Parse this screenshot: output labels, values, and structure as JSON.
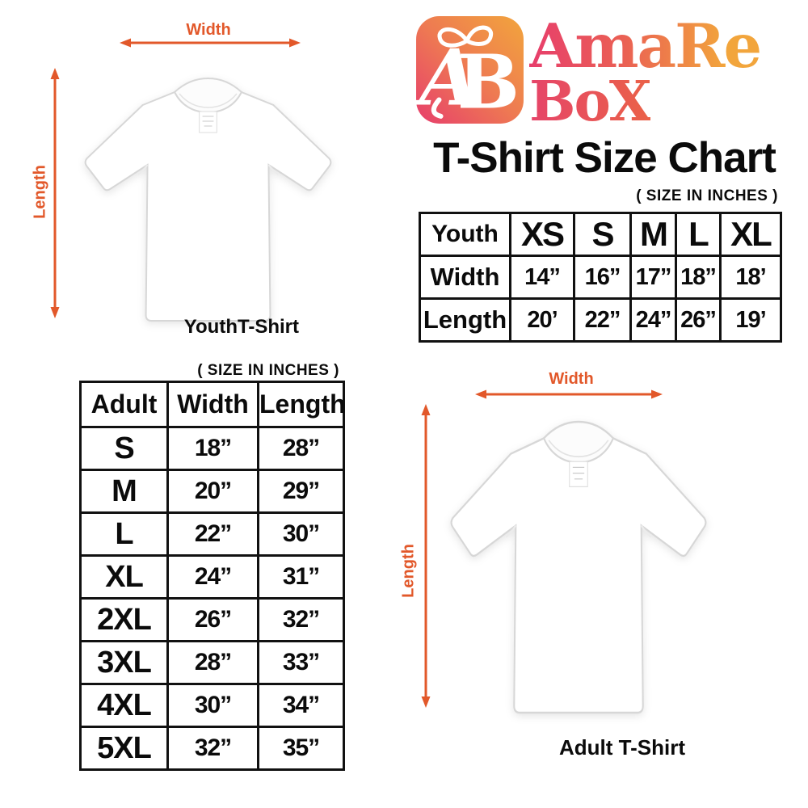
{
  "brand": {
    "wordmark_line1": "AmaRe",
    "wordmark_line2": "BoX",
    "icon": "gift-box-ab-monogram"
  },
  "title": "T-Shirt Size Chart",
  "size_note": "( SIZE IN INCHES )",
  "colors": {
    "accent_orange": "#E2582A",
    "logo_pink": "#E73E6C",
    "logo_coral": "#EE7A52",
    "logo_orange": "#F2A53C",
    "table_border": "#111111"
  },
  "youth_figure": {
    "width_label": "Width",
    "length_label": "Length",
    "caption": "YouthT-Shirt"
  },
  "adult_figure": {
    "width_label": "Width",
    "length_label": "Length",
    "caption": "Adult T-Shirt"
  },
  "youth_table": {
    "header": [
      "Youth",
      "XS",
      "S",
      "M",
      "L",
      "XL"
    ],
    "rows": [
      [
        "Width",
        "14”",
        "16”",
        "17”",
        "18”",
        "18’"
      ],
      [
        "Length",
        "20’",
        "22”",
        "24”",
        "26”",
        "19’"
      ]
    ]
  },
  "adult_table": {
    "header": [
      "Adult",
      "Width",
      "Length"
    ],
    "rows": [
      [
        "S",
        "18”",
        "28”"
      ],
      [
        "M",
        "20”",
        "29”"
      ],
      [
        "L",
        "22”",
        "30”"
      ],
      [
        "XL",
        "24”",
        "31”"
      ],
      [
        "2XL",
        "26”",
        "32”"
      ],
      [
        "3XL",
        "28”",
        "33”"
      ],
      [
        "4XL",
        "30”",
        "34”"
      ],
      [
        "5XL",
        "32”",
        "35”"
      ]
    ]
  }
}
